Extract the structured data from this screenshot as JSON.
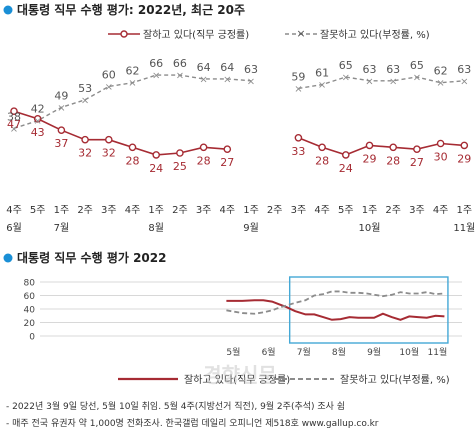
{
  "colors": {
    "positive": "#a62b33",
    "negative": "#8c8c8c",
    "bullet": "#1a8fd6",
    "highlight_box": "#44a8d6",
    "grid": "#d8d8d8"
  },
  "chart_data": [
    {
      "type": "line",
      "title": "대통령 직무 수행 평가: 2022년, 최근 20주",
      "legend_placement": "top-right",
      "series": [
        {
          "name": "잘하고 있다(직무 긍정률)",
          "color": "#a62b33",
          "style": "solid",
          "marker": "circle",
          "values": [
            47,
            43,
            37,
            32,
            32,
            28,
            24,
            25,
            28,
            27,
            null,
            null,
            33,
            28,
            24,
            29,
            28,
            27,
            30,
            29
          ]
        },
        {
          "name": "잘못하고 있다(부정률, %)",
          "color": "#8c8c8c",
          "style": "dashed",
          "marker": "x",
          "values": [
            38,
            42,
            49,
            53,
            60,
            62,
            66,
            66,
            64,
            64,
            63,
            null,
            59,
            61,
            65,
            63,
            63,
            65,
            62,
            63
          ]
        }
      ],
      "week_labels": [
        "4주",
        "5주",
        "1주",
        "2주",
        "3주",
        "4주",
        "1주",
        "2주",
        "3주",
        "4주",
        "1주",
        "2주",
        "3주",
        "4주",
        "5주",
        "1주",
        "2주",
        "3주",
        "4주",
        "1주"
      ],
      "month_labels": [
        {
          "index": 0,
          "label": "6월"
        },
        {
          "index": 2,
          "label": "7월"
        },
        {
          "index": 6,
          "label": "8월"
        },
        {
          "index": 10,
          "label": "9월"
        },
        {
          "index": 15,
          "label": "10월"
        },
        {
          "index": 19,
          "label": "11월"
        }
      ],
      "ylim": [
        15,
        75
      ],
      "grid": false
    },
    {
      "type": "line",
      "title": "대통령 직무 수행 평가 2022",
      "legend_placement": "bottom",
      "yticks": [
        0,
        20,
        40,
        60,
        80
      ],
      "ylim": [
        0,
        80
      ],
      "grid": true,
      "x_month_labels": [
        "5월",
        "6월",
        "7월",
        "8월",
        "9월",
        "10월",
        "11월"
      ],
      "x_month_positions": [
        5.5,
        6.5,
        7.5,
        8.5,
        9.5,
        10.5,
        11.3
      ],
      "xlim": [
        0,
        12
      ],
      "highlight_range": [
        7.1,
        11.6
      ],
      "series": [
        {
          "name": "잘하고 있다(직무 긍정률)",
          "color": "#a62b33",
          "style": "solid",
          "points": [
            [
              5.3,
              52
            ],
            [
              5.75,
              52
            ],
            [
              6.1,
              53
            ],
            [
              6.35,
              53
            ],
            [
              6.6,
              51
            ],
            [
              6.8,
              47
            ],
            [
              7.0,
              43
            ],
            [
              7.25,
              37
            ],
            [
              7.55,
              32
            ],
            [
              7.8,
              32
            ],
            [
              8.05,
              28
            ],
            [
              8.3,
              24
            ],
            [
              8.55,
              25
            ],
            [
              8.8,
              28
            ],
            [
              9.05,
              27
            ],
            [
              9.5,
              27
            ],
            [
              9.75,
              33
            ],
            [
              10.0,
              28
            ],
            [
              10.25,
              24
            ],
            [
              10.5,
              29
            ],
            [
              10.75,
              28
            ],
            [
              11.0,
              27
            ],
            [
              11.25,
              30
            ],
            [
              11.5,
              29
            ]
          ]
        },
        {
          "name": "잘못하고 있다(부정률, %)",
          "color": "#8c8c8c",
          "style": "dashed",
          "points": [
            [
              5.3,
              38
            ],
            [
              5.75,
              34
            ],
            [
              6.1,
              33
            ],
            [
              6.35,
              35
            ],
            [
              6.6,
              38
            ],
            [
              6.8,
              42
            ],
            [
              7.25,
              49
            ],
            [
              7.55,
              53
            ],
            [
              7.8,
              60
            ],
            [
              8.05,
              62
            ],
            [
              8.3,
              66
            ],
            [
              8.55,
              66
            ],
            [
              8.8,
              64
            ],
            [
              9.05,
              64
            ],
            [
              9.3,
              63
            ],
            [
              9.75,
              59
            ],
            [
              10.0,
              61
            ],
            [
              10.25,
              65
            ],
            [
              10.5,
              63
            ],
            [
              10.75,
              63
            ],
            [
              11.0,
              65
            ],
            [
              11.25,
              62
            ],
            [
              11.5,
              63
            ]
          ]
        }
      ]
    }
  ],
  "notes": [
    "- 2022년 3월 9일 당선, 5월 10일 취임. 5월 4주(지방선거 직전), 9월 2주(추석) 조사 쉼",
    "- 매주 전국 유권자 약 1,000명 전화조사. 한국갤럽 데일리 오피니언 제518호 www.gallup.co.kr"
  ],
  "watermark": "경향신문"
}
